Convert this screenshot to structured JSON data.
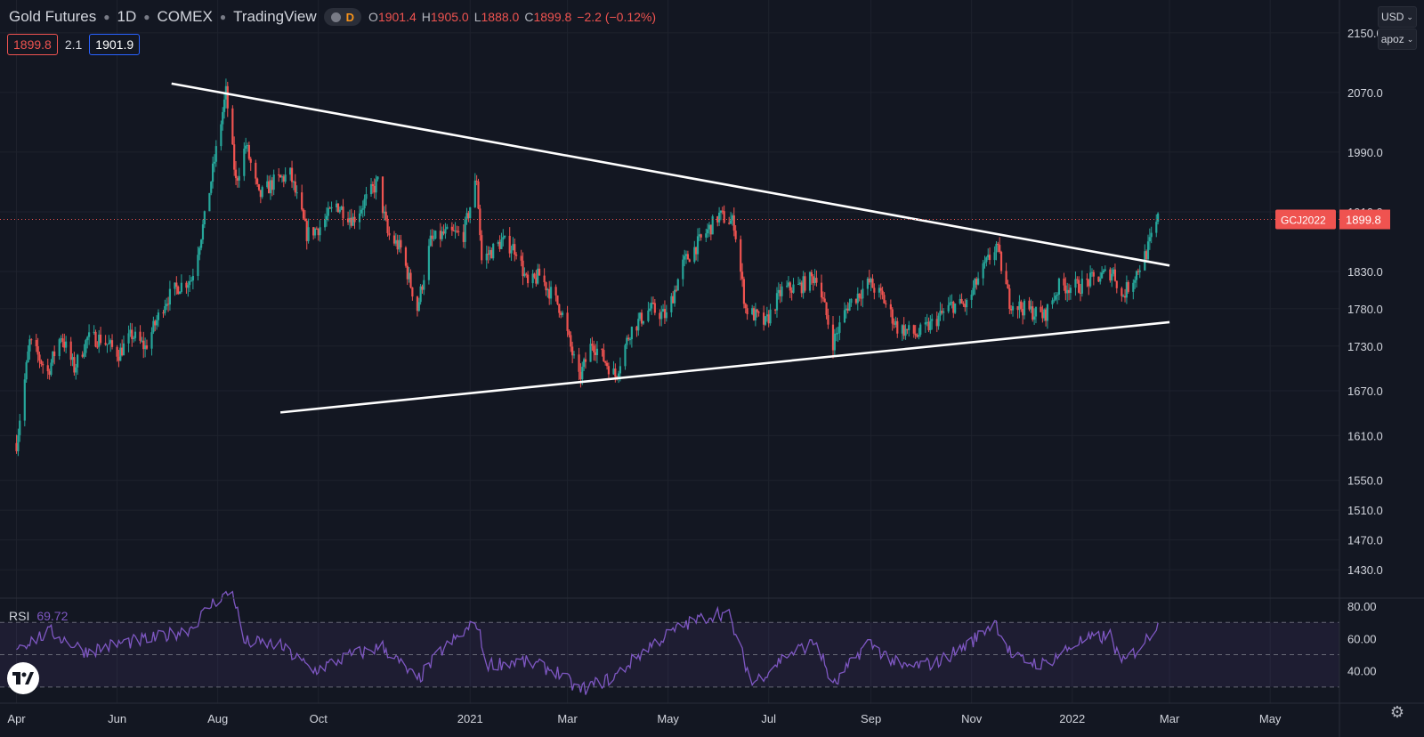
{
  "header": {
    "symbol": "Gold Futures",
    "interval": "1D",
    "exchange": "COMEX",
    "source": "TradingView",
    "pill_label": "D",
    "ohlc": {
      "o_label": "O",
      "o": "1901.4",
      "h_label": "H",
      "h": "1905.0",
      "l_label": "L",
      "l": "1888.0",
      "c_label": "C",
      "c": "1899.8",
      "change": "−2.2 (−0.12%)"
    },
    "bid": "1899.8",
    "spread": "2.1",
    "ask": "1901.9"
  },
  "axis_controls": {
    "currency": "USD",
    "scale": "apoz"
  },
  "rsi": {
    "label": "RSI",
    "value": "69.72"
  },
  "price_tag": {
    "symbol": "GCJ2022",
    "price": "1899.8"
  },
  "colors": {
    "up": "#26a69a",
    "down": "#ef5350",
    "background": "#131722",
    "grid": "#1e222d",
    "rsi": "#7e57c2",
    "trendline": "#ffffff",
    "tag": "#ef5350"
  },
  "chart_data": [
    {
      "type": "candlestick",
      "xlabel": "",
      "ylabel": "",
      "x_ticks": [
        "Apr",
        "Jun",
        "Aug",
        "Oct",
        "2021",
        "Mar",
        "May",
        "Jul",
        "Sep",
        "Nov",
        "2022",
        "Mar",
        "May"
      ],
      "y_ticks": [
        2150.0,
        2070.0,
        1990.0,
        1910.0,
        1830.0,
        1780.0,
        1730.0,
        1670.0,
        1610.0,
        1550.0,
        1510.0,
        1470.0,
        1430.0
      ],
      "ylim": [
        1392,
        2194
      ],
      "last_price": 1899.8,
      "price_path": [
        [
          "2020-04-01",
          1600
        ],
        [
          "2020-04-09",
          1735
        ],
        [
          "2020-04-20",
          1695
        ],
        [
          "2020-04-28",
          1745
        ],
        [
          "2020-05-06",
          1700
        ],
        [
          "2020-05-14",
          1740
        ],
        [
          "2020-05-22",
          1740
        ],
        [
          "2020-06-02",
          1720
        ],
        [
          "2020-06-10",
          1745
        ],
        [
          "2020-06-18",
          1728
        ],
        [
          "2020-06-30",
          1790
        ],
        [
          "2020-07-08",
          1810
        ],
        [
          "2020-07-16",
          1820
        ],
        [
          "2020-07-24",
          1900
        ],
        [
          "2020-08-06",
          2070
        ],
        [
          "2020-08-12",
          1950
        ],
        [
          "2020-08-18",
          2000
        ],
        [
          "2020-08-26",
          1930
        ],
        [
          "2020-09-04",
          1950
        ],
        [
          "2020-09-14",
          1960
        ],
        [
          "2020-09-24",
          1880
        ],
        [
          "2020-10-02",
          1890
        ],
        [
          "2020-10-12",
          1920
        ],
        [
          "2020-10-22",
          1900
        ],
        [
          "2020-11-06",
          1950
        ],
        [
          "2020-11-12",
          1880
        ],
        [
          "2020-11-20",
          1860
        ],
        [
          "2020-11-30",
          1780
        ],
        [
          "2020-12-08",
          1870
        ],
        [
          "2020-12-16",
          1880
        ],
        [
          "2020-12-28",
          1880
        ],
        [
          "2021-01-05",
          1955
        ],
        [
          "2021-01-08",
          1845
        ],
        [
          "2021-01-20",
          1870
        ],
        [
          "2021-01-29",
          1860
        ],
        [
          "2021-02-05",
          1810
        ],
        [
          "2021-02-12",
          1825
        ],
        [
          "2021-02-25",
          1780
        ],
        [
          "2021-03-08",
          1685
        ],
        [
          "2021-03-16",
          1735
        ],
        [
          "2021-03-30",
          1690
        ],
        [
          "2021-04-08",
          1750
        ],
        [
          "2021-04-20",
          1780
        ],
        [
          "2021-04-30",
          1770
        ],
        [
          "2021-05-10",
          1840
        ],
        [
          "2021-05-20",
          1870
        ],
        [
          "2021-06-01",
          1905
        ],
        [
          "2021-06-10",
          1895
        ],
        [
          "2021-06-17",
          1780
        ],
        [
          "2021-06-29",
          1760
        ],
        [
          "2021-07-09",
          1805
        ],
        [
          "2021-07-20",
          1810
        ],
        [
          "2021-07-30",
          1825
        ],
        [
          "2021-08-09",
          1735
        ],
        [
          "2021-08-18",
          1785
        ],
        [
          "2021-08-31",
          1815
        ],
        [
          "2021-09-08",
          1795
        ],
        [
          "2021-09-17",
          1755
        ],
        [
          "2021-09-29",
          1745
        ],
        [
          "2021-10-08",
          1760
        ],
        [
          "2021-10-20",
          1785
        ],
        [
          "2021-10-29",
          1785
        ],
        [
          "2021-11-05",
          1820
        ],
        [
          "2021-11-16",
          1865
        ],
        [
          "2021-11-24",
          1790
        ],
        [
          "2021-12-03",
          1780
        ],
        [
          "2021-12-15",
          1770
        ],
        [
          "2021-12-24",
          1810
        ],
        [
          "2022-01-05",
          1810
        ],
        [
          "2022-01-14",
          1820
        ],
        [
          "2022-01-26",
          1830
        ],
        [
          "2022-01-31",
          1795
        ],
        [
          "2022-02-08",
          1825
        ],
        [
          "2022-02-15",
          1855
        ],
        [
          "2022-02-22",
          1900
        ]
      ],
      "trendlines": [
        {
          "from": [
            "2020-07-04",
            2082
          ],
          "to": [
            "2022-03-01",
            1838
          ]
        },
        {
          "from": [
            "2020-09-08",
            1641
          ],
          "to": [
            "2022-03-01",
            1762
          ]
        }
      ]
    },
    {
      "type": "line",
      "name": "RSI",
      "y_ticks": [
        80.0,
        60.0,
        40.0
      ],
      "ylim": [
        20,
        85
      ],
      "bands": [
        70,
        50,
        30
      ],
      "last_value": 69.72,
      "points": [
        [
          "2020-04-01",
          55
        ],
        [
          "2020-04-22",
          64
        ],
        [
          "2020-05-13",
          52
        ],
        [
          "2020-06-03",
          57
        ],
        [
          "2020-06-24",
          60
        ],
        [
          "2020-07-15",
          66
        ],
        [
          "2020-07-30",
          83
        ],
        [
          "2020-08-10",
          90
        ],
        [
          "2020-08-17",
          58
        ],
        [
          "2020-09-07",
          56
        ],
        [
          "2020-09-28",
          40
        ],
        [
          "2020-10-19",
          49
        ],
        [
          "2020-11-09",
          55
        ],
        [
          "2020-11-30",
          34
        ],
        [
          "2020-12-14",
          52
        ],
        [
          "2021-01-05",
          70
        ],
        [
          "2021-01-11",
          44
        ],
        [
          "2021-02-01",
          46
        ],
        [
          "2021-02-22",
          40
        ],
        [
          "2021-03-08",
          28
        ],
        [
          "2021-03-29",
          36
        ],
        [
          "2021-04-19",
          55
        ],
        [
          "2021-05-10",
          68
        ],
        [
          "2021-05-31",
          76
        ],
        [
          "2021-06-07",
          74
        ],
        [
          "2021-06-21",
          32
        ],
        [
          "2021-07-12",
          50
        ],
        [
          "2021-07-30",
          58
        ],
        [
          "2021-08-09",
          30
        ],
        [
          "2021-08-30",
          58
        ],
        [
          "2021-09-20",
          42
        ],
        [
          "2021-10-11",
          45
        ],
        [
          "2021-11-01",
          58
        ],
        [
          "2021-11-15",
          71
        ],
        [
          "2021-11-26",
          48
        ],
        [
          "2021-12-15",
          44
        ],
        [
          "2022-01-05",
          58
        ],
        [
          "2022-01-24",
          62
        ],
        [
          "2022-01-31",
          44
        ],
        [
          "2022-02-14",
          58
        ],
        [
          "2022-02-22",
          69.72
        ]
      ]
    }
  ]
}
